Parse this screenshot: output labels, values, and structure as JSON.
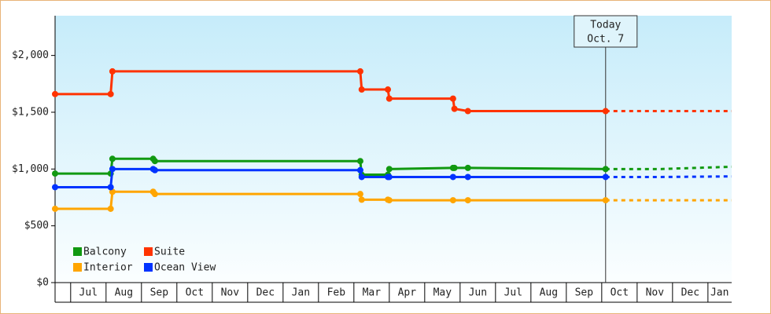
{
  "chart_data": {
    "type": "step-line",
    "xlim": [
      -0.44,
      18.67
    ],
    "xticks": [
      {
        "value": 0.5,
        "label": "Jul"
      },
      {
        "value": 1.5,
        "label": "Aug"
      },
      {
        "value": 2.5,
        "label": "Sep"
      },
      {
        "value": 3.5,
        "label": "Oct"
      },
      {
        "value": 4.5,
        "label": "Nov"
      },
      {
        "value": 5.5,
        "label": "Dec"
      },
      {
        "value": 6.5,
        "label": "Jan"
      },
      {
        "value": 7.5,
        "label": "Feb"
      },
      {
        "value": 8.5,
        "label": "Mar"
      },
      {
        "value": 9.5,
        "label": "Apr"
      },
      {
        "value": 10.5,
        "label": "May"
      },
      {
        "value": 11.5,
        "label": "Jun"
      },
      {
        "value": 12.5,
        "label": "Jul"
      },
      {
        "value": 13.5,
        "label": "Aug"
      },
      {
        "value": 14.5,
        "label": "Sep"
      },
      {
        "value": 15.5,
        "label": "Oct"
      },
      {
        "value": 16.5,
        "label": "Nov"
      },
      {
        "value": 17.5,
        "label": "Dec"
      },
      {
        "value": 18.33,
        "label": "Jan"
      }
    ],
    "ylim": [
      0,
      2350
    ],
    "yticks": [
      {
        "value": 0,
        "label": "$0"
      },
      {
        "value": 500,
        "label": "$500"
      },
      {
        "value": 1000,
        "label": "$1,000"
      },
      {
        "value": 1500,
        "label": "$1,500"
      },
      {
        "value": 2000,
        "label": "$2,000"
      }
    ],
    "annotation": {
      "x": 15.11,
      "lines": [
        "Today",
        "Oct. 7"
      ]
    },
    "series": [
      {
        "name": "Balcony",
        "color": "#119911",
        "x": [
          -0.44,
          1.13,
          1.18,
          2.33,
          2.38,
          8.18,
          8.22,
          8.96,
          9.0,
          10.8,
          10.84,
          11.22,
          15.11
        ],
        "values": [
          960,
          960,
          1090,
          1090,
          1070,
          1070,
          950,
          950,
          1000,
          1010,
          1010,
          1010,
          1000
        ],
        "forecast": {
          "x": [
            15.11,
            16.67,
            18.67
          ],
          "values": [
            1000,
            1000,
            1020
          ]
        }
      },
      {
        "name": "Suite",
        "color": "#ff3300",
        "x": [
          -0.44,
          1.13,
          1.18,
          8.18,
          8.22,
          8.96,
          9.0,
          10.8,
          10.84,
          11.22,
          15.11
        ],
        "values": [
          1660,
          1660,
          1860,
          1860,
          1700,
          1700,
          1620,
          1620,
          1530,
          1510,
          1510
        ],
        "forecast": {
          "x": [
            15.11,
            18.67
          ],
          "values": [
            1510,
            1510
          ]
        }
      },
      {
        "name": "Interior",
        "color": "#ffa500",
        "x": [
          -0.44,
          1.13,
          1.18,
          2.33,
          2.38,
          8.18,
          8.22,
          8.96,
          9.0,
          10.8,
          11.22,
          15.11
        ],
        "values": [
          650,
          650,
          800,
          800,
          780,
          780,
          730,
          730,
          725,
          725,
          725,
          725
        ],
        "forecast": {
          "x": [
            15.11,
            18.67
          ],
          "values": [
            725,
            725
          ]
        }
      },
      {
        "name": "Ocean View",
        "color": "#0033ff",
        "x": [
          -0.44,
          1.13,
          1.18,
          2.33,
          2.38,
          8.18,
          8.22,
          8.96,
          9.0,
          10.8,
          11.22,
          15.11
        ],
        "values": [
          840,
          840,
          1000,
          1000,
          990,
          990,
          930,
          930,
          930,
          930,
          930,
          930
        ],
        "forecast": {
          "x": [
            15.11,
            16.67,
            18.67
          ],
          "values": [
            930,
            930,
            935
          ]
        }
      }
    ]
  }
}
